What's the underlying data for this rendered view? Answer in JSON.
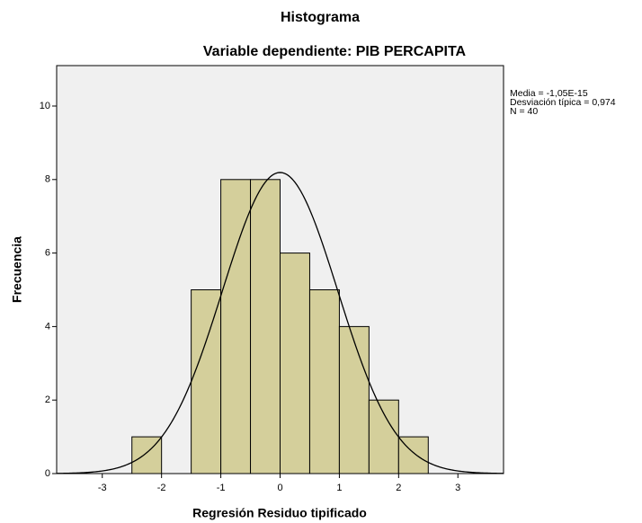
{
  "chart_data": {
    "type": "histogram",
    "title": "Histograma",
    "subtitle": "Variable dependiente: PIB PERCAPITA",
    "x_label": "Regresión Residuo tipificado",
    "y_label": "Frecuencia",
    "bins": [
      -2.5,
      -2,
      -1.5,
      -1,
      -0.5,
      0,
      0.5,
      1,
      1.5,
      2,
      2.5
    ],
    "values": [
      1,
      0,
      5,
      8,
      8,
      6,
      5,
      4,
      2,
      1
    ],
    "color": "#d4cf9b",
    "xlim": [
      -3.77,
      3.77
    ],
    "xticks": [
      -3,
      -2,
      -1,
      0,
      1,
      2,
      3
    ],
    "ylim": [
      0,
      11.1
    ],
    "yticks": [
      0,
      2,
      4,
      6,
      8,
      10
    ],
    "normal_curve": {
      "mean": -1.05e-15,
      "sd": 0.974,
      "n": 40
    },
    "stats_text": [
      "Media = -1,05E-15",
      "Desviación típica = 0,974",
      "N = 40"
    ]
  }
}
